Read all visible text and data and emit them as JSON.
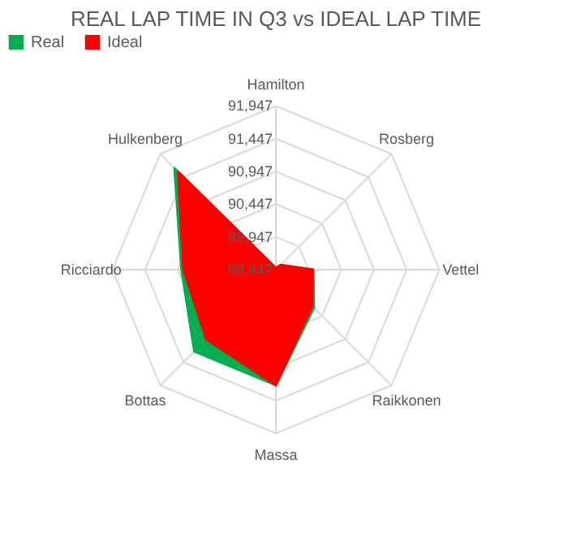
{
  "chart_data": {
    "type": "radar",
    "title": "REAL LAP TIME IN Q3 vs IDEAL LAP TIME",
    "categories": [
      "Hamilton",
      "Rosberg",
      "Vettel",
      "Raikkonen",
      "Massa",
      "Bottas",
      "Ricciardo",
      "Hulkenberg"
    ],
    "series": [
      {
        "name": "Real",
        "color": "#00b050",
        "values": [
          89470,
          89550,
          90020,
          90270,
          91210,
          91210,
          90890,
          91640
        ]
      },
      {
        "name": "Ideal",
        "color": "#ff0000",
        "values": [
          89470,
          89550,
          90010,
          90230,
          91210,
          90950,
          90860,
          91560
        ]
      }
    ],
    "ylim": [
      89447,
      91947
    ],
    "yticks": [
      {
        "value": 89447,
        "label": "89,447"
      },
      {
        "value": 89947,
        "label": "89,947"
      },
      {
        "value": 90447,
        "label": "90,447"
      },
      {
        "value": 90947,
        "label": "90,947"
      },
      {
        "value": 91447,
        "label": "91,447"
      },
      {
        "value": 91947,
        "label": "91,947"
      }
    ],
    "grid": true,
    "legend": "top"
  }
}
